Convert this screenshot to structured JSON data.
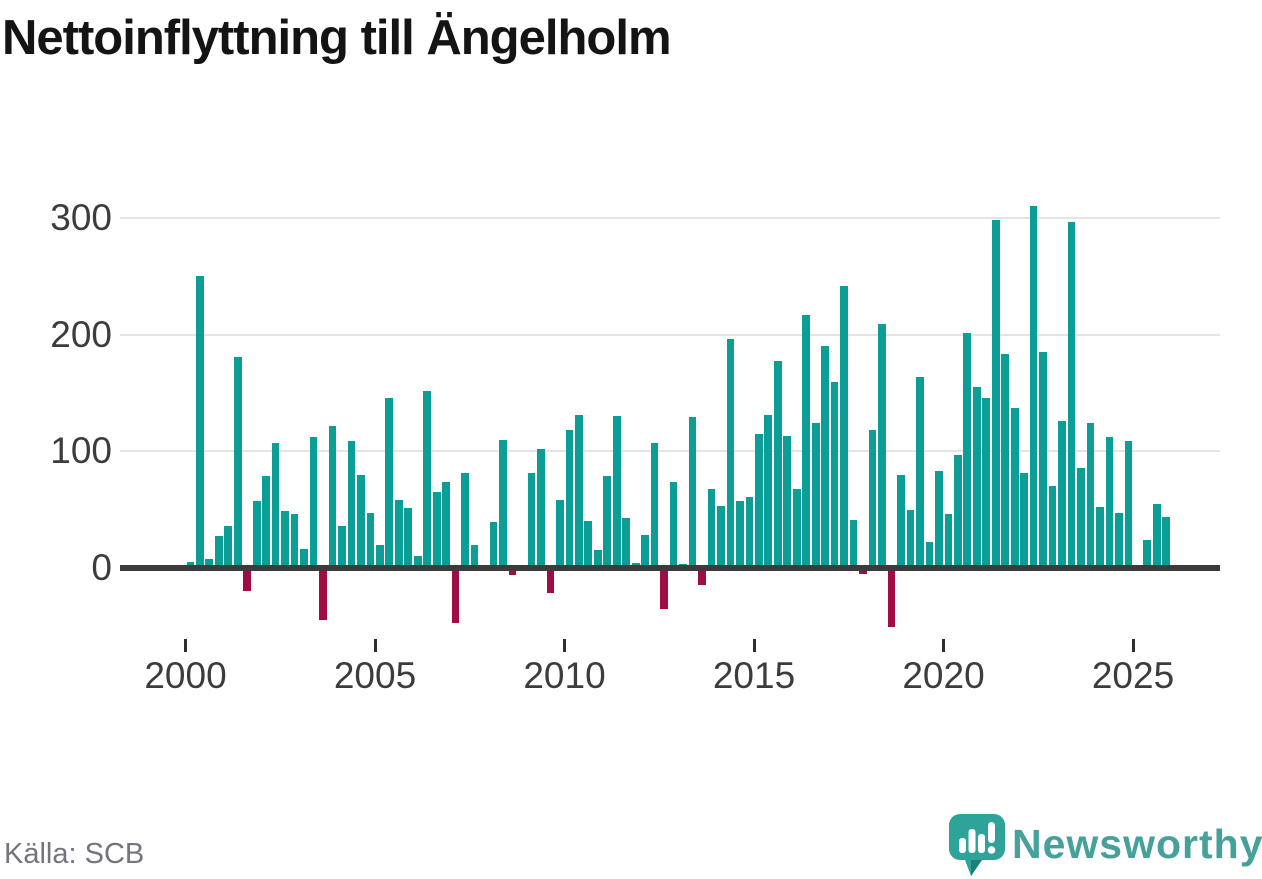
{
  "title": "Nettoinflyttning till Ängelholm",
  "source": "Källa: SCB",
  "branding": {
    "wordmark": "Newsworthy",
    "icon": "speech-bubble-bar-chart-icon",
    "brand_color": "#46a09b"
  },
  "colors": {
    "positive_bar": "#0a9e96",
    "negative_bar": "#a00c44",
    "gridline": "#e4e4e4",
    "zero_line": "#3b3b3b",
    "axis_text": "#3c3c3c",
    "title_text": "#141414",
    "source_text": "#74747c"
  },
  "chart_data": {
    "type": "bar",
    "title": "Nettoinflyttning till Ängelholm",
    "xlabel": "",
    "ylabel": "",
    "grid": "horizontal",
    "legend": "none",
    "y_ticks": [
      0,
      100,
      200,
      300
    ],
    "ylim": [
      -60,
      324
    ],
    "x_tick_labels": [
      "2000",
      "2005",
      "2010",
      "2015",
      "2020",
      "2025"
    ],
    "frequency": "quarterly",
    "x": [
      "2000Q1",
      "2000Q2",
      "2000Q3",
      "2000Q4",
      "2001Q1",
      "2001Q2",
      "2001Q3",
      "2001Q4",
      "2002Q1",
      "2002Q2",
      "2002Q3",
      "2002Q4",
      "2003Q1",
      "2003Q2",
      "2003Q3",
      "2003Q4",
      "2004Q1",
      "2004Q2",
      "2004Q3",
      "2004Q4",
      "2005Q1",
      "2005Q2",
      "2005Q3",
      "2005Q4",
      "2006Q1",
      "2006Q2",
      "2006Q3",
      "2006Q4",
      "2007Q1",
      "2007Q2",
      "2007Q3",
      "2007Q4",
      "2008Q1",
      "2008Q2",
      "2008Q3",
      "2008Q4",
      "2009Q1",
      "2009Q2",
      "2009Q3",
      "2009Q4",
      "2010Q1",
      "2010Q2",
      "2010Q3",
      "2010Q4",
      "2011Q1",
      "2011Q2",
      "2011Q3",
      "2011Q4",
      "2012Q1",
      "2012Q2",
      "2012Q3",
      "2012Q4",
      "2013Q1",
      "2013Q2",
      "2013Q3",
      "2013Q4",
      "2014Q1",
      "2014Q2",
      "2014Q3",
      "2014Q4",
      "2015Q1",
      "2015Q2",
      "2015Q3",
      "2015Q4",
      "2016Q1",
      "2016Q2",
      "2016Q3",
      "2016Q4",
      "2017Q1",
      "2017Q2",
      "2017Q3",
      "2017Q4",
      "2018Q1",
      "2018Q2",
      "2018Q3",
      "2018Q4",
      "2019Q1",
      "2019Q2",
      "2019Q3",
      "2019Q4",
      "2020Q1",
      "2020Q2",
      "2020Q3",
      "2020Q4",
      "2021Q1",
      "2021Q2",
      "2021Q3",
      "2021Q4",
      "2022Q1",
      "2022Q2",
      "2022Q3",
      "2022Q4",
      "2023Q1",
      "2023Q2",
      "2023Q3",
      "2023Q4",
      "2024Q1",
      "2024Q2",
      "2024Q3",
      "2024Q4",
      "2025Q1",
      "2025Q2",
      "2025Q3",
      "2025Q4"
    ],
    "values": [
      5,
      250,
      8,
      27,
      36,
      181,
      -18,
      57,
      79,
      107,
      49,
      46,
      16,
      112,
      -43,
      122,
      36,
      109,
      80,
      47,
      20,
      146,
      58,
      51,
      10,
      152,
      65,
      74,
      -45,
      81,
      20,
      0,
      39,
      110,
      -4,
      0,
      81,
      102,
      -20,
      58,
      118,
      131,
      40,
      15,
      79,
      130,
      43,
      4,
      28,
      107,
      -33,
      74,
      3,
      129,
      -13,
      68,
      53,
      196,
      57,
      61,
      115,
      131,
      177,
      113,
      68,
      217,
      124,
      190,
      159,
      242,
      41,
      -3,
      118,
      209,
      -49,
      80,
      50,
      164,
      22,
      83,
      46,
      97,
      201,
      155,
      146,
      298,
      183,
      137,
      81,
      310,
      185,
      70,
      126,
      296,
      86,
      124,
      52,
      112,
      47,
      109,
      0,
      24,
      55,
      44
    ]
  }
}
